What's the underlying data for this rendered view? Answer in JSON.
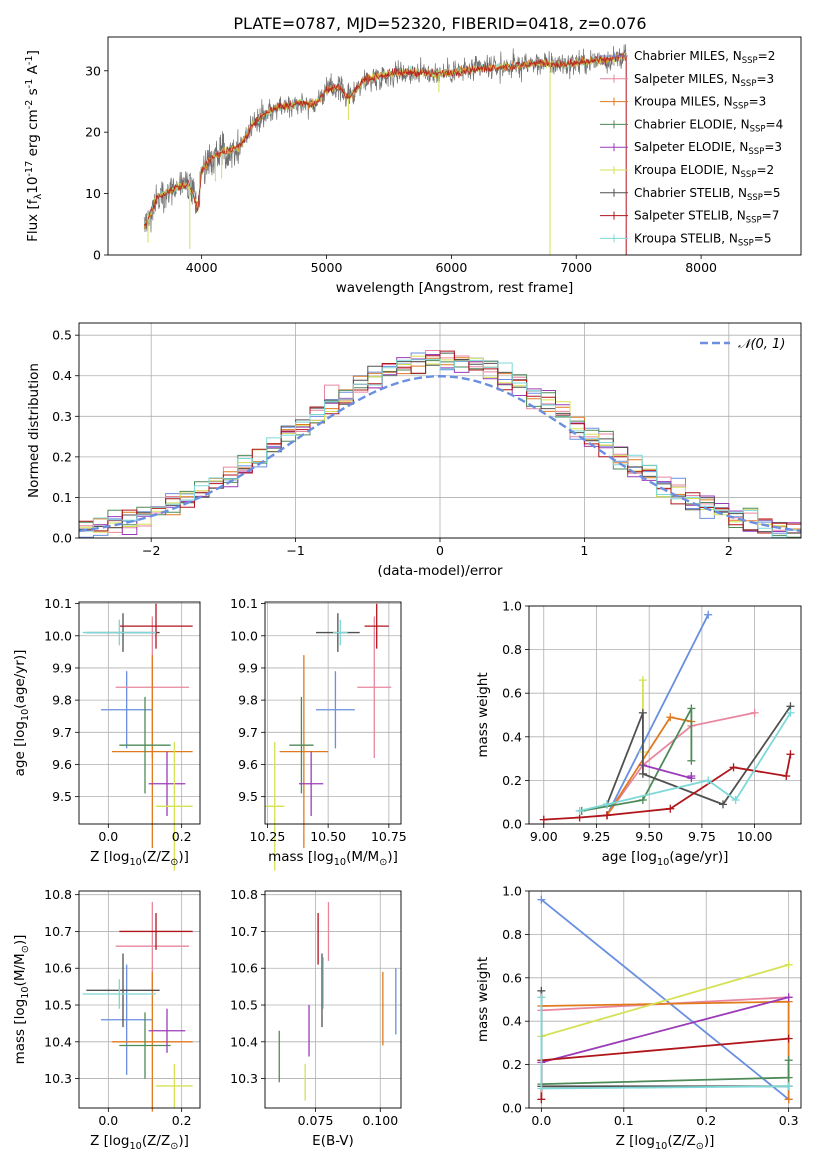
{
  "figure_title": "PLATE=0787, MJD=52320, FIBERID=0418, z=0.076",
  "colors": {
    "C_MILES": "#6a8fe0",
    "S_MILES": "#e8869f",
    "K_MILES": "#e07a1f",
    "C_ELODIE": "#4e8a58",
    "S_ELODIE": "#9b3bb8",
    "K_ELODIE": "#d5e155",
    "C_STELIB": "#505050",
    "S_STELIB": "#b0151b",
    "K_STELIB": "#7dd8d8",
    "data": "#707070",
    "gauss": "#6a8fe0"
  },
  "chart_data": [
    {
      "id": "spectrum",
      "type": "line",
      "xlabel": "wavelength [Angstrom, rest frame]",
      "ylabel": "Flux [f$_\\lambda$10$^{-17}$ erg cm$^{-2}$ s$^{-1}$ A$^{-1}$]",
      "xlim": [
        3250,
        8800
      ],
      "ylim": [
        0,
        35.5
      ],
      "xticks": [
        "4000",
        "5000",
        "6000",
        "7000",
        "8000"
      ],
      "yticks": [
        "0",
        "10",
        "20",
        "30"
      ],
      "legend_position": "top-right",
      "legend": [
        {
          "main": "Chabrier MILES, N",
          "sub": "SSP",
          "val": "=2",
          "color": "C_MILES"
        },
        {
          "main": "Salpeter MILES, N",
          "sub": "SSP",
          "val": "=3",
          "color": "S_MILES"
        },
        {
          "main": "Kroupa MILES, N",
          "sub": "SSP",
          "val": "=3",
          "color": "K_MILES"
        },
        {
          "main": "Chabrier ELODIE, N",
          "sub": "SSP",
          "val": "=4",
          "color": "C_ELODIE"
        },
        {
          "main": "Salpeter ELODIE, N",
          "sub": "SSP",
          "val": "=3",
          "color": "S_ELODIE"
        },
        {
          "main": "Kroupa ELODIE, N",
          "sub": "SSP",
          "val": "=2",
          "color": "K_ELODIE"
        },
        {
          "main": "Chabrier STELIB, N",
          "sub": "SSP",
          "val": "=5",
          "color": "C_STELIB"
        },
        {
          "main": "Salpeter STELIB, N",
          "sub": "SSP",
          "val": "=7",
          "color": "S_STELIB"
        },
        {
          "main": "Kroupa STELIB, N",
          "sub": "SSP",
          "val": "=5",
          "color": "K_STELIB"
        }
      ],
      "continuum": [
        [
          3540,
          4.5
        ],
        [
          3650,
          9.5
        ],
        [
          3800,
          11
        ],
        [
          3900,
          11.5
        ],
        [
          3970,
          7.5
        ],
        [
          4000,
          14
        ],
        [
          4100,
          16
        ],
        [
          4200,
          17
        ],
        [
          4300,
          17.5
        ],
        [
          4400,
          21
        ],
        [
          4500,
          23
        ],
        [
          4600,
          24
        ],
        [
          4800,
          24.8
        ],
        [
          4900,
          24.5
        ],
        [
          5000,
          26.8
        ],
        [
          5100,
          27.5
        ],
        [
          5175,
          25.5
        ],
        [
          5300,
          28.5
        ],
        [
          5500,
          29.5
        ],
        [
          5700,
          29.8
        ],
        [
          5900,
          29.5
        ],
        [
          6100,
          30
        ],
        [
          6300,
          30.5
        ],
        [
          6500,
          30.8
        ],
        [
          6700,
          31.3
        ],
        [
          6900,
          31
        ],
        [
          7100,
          31.5
        ],
        [
          7300,
          32
        ],
        [
          7400,
          32.5
        ]
      ],
      "spectrum_noise": 1.4,
      "lines": [
        {
          "x": 3570,
          "y": 2
        },
        {
          "x": 3905,
          "y": 1
        },
        {
          "x": 4110,
          "y": 12
        },
        {
          "x": 4160,
          "y": 12.5
        },
        {
          "x": 5175,
          "y": 22
        },
        {
          "x": 5900,
          "y": 26.5
        },
        {
          "x": 6790,
          "y": 0
        },
        {
          "x": 7400,
          "y": 0
        }
      ]
    },
    {
      "id": "residuals",
      "type": "histogram",
      "xlabel": "(data-model)/error",
      "ylabel": "Normed distribution",
      "xlim": [
        -2.5,
        2.5
      ],
      "ylim": [
        0,
        0.53
      ],
      "xticks": [
        "−2",
        "−1",
        "0",
        "1",
        "2"
      ],
      "yticks": [
        "0.0",
        "0.1",
        "0.2",
        "0.3",
        "0.4",
        "0.5"
      ],
      "bin_width": 0.1,
      "reference_label": "𝒩(0, 1)",
      "legend_position": "top-right"
    },
    {
      "id": "age_vs_Z",
      "type": "errorbar",
      "xlabel": "Z [log$_{10}$(Z/Z$_\\odot$)]",
      "ylabel": "age  [log$_{10}$(age/yr)]",
      "xlim": [
        -0.08,
        0.25
      ],
      "ylim": [
        9.415,
        10.105
      ],
      "xticks": [
        "0.0",
        "0.2"
      ],
      "yticks": [
        "9.5",
        "9.6",
        "9.7",
        "9.8",
        "9.9",
        "10.0",
        "10.1"
      ],
      "points": [
        {
          "c": "C_MILES",
          "x": 0.05,
          "xe": 0.07,
          "y": 9.77,
          "ye": 0.12
        },
        {
          "c": "S_MILES",
          "x": 0.12,
          "xe": 0.1,
          "y": 9.84,
          "ye": 0.22
        },
        {
          "c": "K_MILES",
          "x": 0.12,
          "xe": 0.11,
          "y": 9.64,
          "ye": 0.3
        },
        {
          "c": "C_ELODIE",
          "x": 0.1,
          "xe": 0.07,
          "y": 9.66,
          "ye": 0.15
        },
        {
          "c": "S_ELODIE",
          "x": 0.16,
          "xe": 0.05,
          "y": 9.54,
          "ye": 0.1
        },
        {
          "c": "K_ELODIE",
          "x": 0.18,
          "xe": 0.05,
          "y": 9.47,
          "ye": 0.2
        },
        {
          "c": "C_STELIB",
          "x": 0.04,
          "xe": 0.1,
          "y": 10.01,
          "ye": 0.06
        },
        {
          "c": "S_STELIB",
          "x": 0.13,
          "xe": 0.1,
          "y": 10.03,
          "ye": 0.07
        },
        {
          "c": "K_STELIB",
          "x": 0.03,
          "xe": 0.1,
          "y": 10.01,
          "ye": 0.04
        }
      ]
    },
    {
      "id": "age_vs_mass",
      "type": "errorbar",
      "xlabel": "mass [log$_{10}$(M/M$_\\odot$)]",
      "ylabel": "",
      "xlim": [
        10.24,
        10.8
      ],
      "ylim": [
        9.415,
        10.105
      ],
      "xticks": [
        "10.25",
        "10.50",
        "10.75"
      ],
      "yticks": [
        "9.5",
        "9.6",
        "9.7",
        "9.8",
        "9.9",
        "10.0",
        "10.1"
      ],
      "points": [
        {
          "c": "C_MILES",
          "x": 10.53,
          "xe": 0.08,
          "y": 9.77,
          "ye": 0.12
        },
        {
          "c": "S_MILES",
          "x": 10.69,
          "xe": 0.07,
          "y": 9.84,
          "ye": 0.22
        },
        {
          "c": "K_MILES",
          "x": 10.4,
          "xe": 0.1,
          "y": 9.64,
          "ye": 0.3
        },
        {
          "c": "C_ELODIE",
          "x": 10.39,
          "xe": 0.05,
          "y": 9.66,
          "ye": 0.15
        },
        {
          "c": "S_ELODIE",
          "x": 10.43,
          "xe": 0.05,
          "y": 9.54,
          "ye": 0.1
        },
        {
          "c": "K_ELODIE",
          "x": 10.28,
          "xe": 0.04,
          "y": 9.47,
          "ye": 0.2
        },
        {
          "c": "C_STELIB",
          "x": 10.54,
          "xe": 0.09,
          "y": 10.01,
          "ye": 0.06
        },
        {
          "c": "S_STELIB",
          "x": 10.7,
          "xe": 0.05,
          "y": 10.03,
          "ye": 0.07
        },
        {
          "c": "K_STELIB",
          "x": 10.55,
          "xe": 0.03,
          "y": 10.01,
          "ye": 0.04
        }
      ]
    },
    {
      "id": "weight_vs_age",
      "type": "line",
      "xlabel": "age  [log$_{10}$(age/yr)]",
      "ylabel": "mass weight",
      "xlim": [
        8.93,
        10.22
      ],
      "ylim": [
        0,
        1.0
      ],
      "xticks": [
        "9.00",
        "9.25",
        "9.50",
        "9.75",
        "10.00"
      ],
      "yticks": [
        "0.0",
        "0.2",
        "0.4",
        "0.6",
        "0.8",
        "1.0"
      ],
      "series": [
        {
          "c": "C_MILES",
          "points": [
            [
              9.3,
              0.04
            ],
            [
              9.78,
              0.96
            ]
          ]
        },
        {
          "c": "S_MILES",
          "points": [
            [
              9.3,
              0.04
            ],
            [
              9.47,
              0.27
            ],
            [
              9.7,
              0.45
            ],
            [
              10.0,
              0.51
            ]
          ]
        },
        {
          "c": "K_MILES",
          "points": [
            [
              9.3,
              0.04
            ],
            [
              9.6,
              0.49
            ],
            [
              9.7,
              0.47
            ]
          ]
        },
        {
          "c": "C_ELODIE",
          "points": [
            [
              9.18,
              0.06
            ],
            [
              9.47,
              0.11
            ],
            [
              9.7,
              0.53
            ],
            [
              9.7,
              0.29
            ]
          ]
        },
        {
          "c": "S_ELODIE",
          "points": [
            [
              9.47,
              0.27
            ],
            [
              9.7,
              0.21
            ],
            [
              9.7,
              0.22
            ]
          ]
        },
        {
          "c": "K_ELODIE",
          "points": [
            [
              9.47,
              0.33
            ],
            [
              9.47,
              0.66
            ]
          ]
        },
        {
          "c": "C_STELIB",
          "points": [
            [
              9.3,
              0.09
            ],
            [
              9.47,
              0.51
            ],
            [
              9.47,
              0.23
            ],
            [
              9.85,
              0.09
            ],
            [
              10.17,
              0.54
            ]
          ]
        },
        {
          "c": "S_STELIB",
          "points": [
            [
              9.0,
              0.02
            ],
            [
              9.17,
              0.03
            ],
            [
              9.3,
              0.04
            ],
            [
              9.6,
              0.07
            ],
            [
              9.9,
              0.26
            ],
            [
              10.15,
              0.22
            ],
            [
              10.17,
              0.32
            ]
          ]
        },
        {
          "c": "K_STELIB",
          "points": [
            [
              9.17,
              0.06
            ],
            [
              9.3,
              0.09
            ],
            [
              9.78,
              0.2
            ],
            [
              9.91,
              0.11
            ],
            [
              10.17,
              0.51
            ]
          ]
        }
      ]
    },
    {
      "id": "mass_vs_Z",
      "type": "errorbar",
      "xlabel": "Z [log$_{10}$(Z/Z$_\\odot$)]",
      "ylabel": "mass [log$_{10}$(M/M$_\\odot$)]",
      "xlim": [
        -0.08,
        0.25
      ],
      "ylim": [
        10.22,
        10.81
      ],
      "xticks": [
        "0.0",
        "0.2"
      ],
      "yticks": [
        "10.3",
        "10.4",
        "10.5",
        "10.6",
        "10.7",
        "10.8"
      ],
      "points": [
        {
          "c": "C_MILES",
          "x": 0.05,
          "xe": 0.07,
          "y": 10.46,
          "ye": 0.15
        },
        {
          "c": "S_MILES",
          "x": 0.12,
          "xe": 0.1,
          "y": 10.66,
          "ye": 0.12
        },
        {
          "c": "K_MILES",
          "x": 0.12,
          "xe": 0.11,
          "y": 10.4,
          "ye": 0.19
        },
        {
          "c": "C_ELODIE",
          "x": 0.1,
          "xe": 0.07,
          "y": 10.39,
          "ye": 0.09
        },
        {
          "c": "S_ELODIE",
          "x": 0.16,
          "xe": 0.05,
          "y": 10.43,
          "ye": 0.06
        },
        {
          "c": "K_ELODIE",
          "x": 0.18,
          "xe": 0.05,
          "y": 10.28,
          "ye": 0.06
        },
        {
          "c": "C_STELIB",
          "x": 0.04,
          "xe": 0.1,
          "y": 10.54,
          "ye": 0.1
        },
        {
          "c": "S_STELIB",
          "x": 0.13,
          "xe": 0.1,
          "y": 10.7,
          "ye": 0.05
        },
        {
          "c": "K_STELIB",
          "x": 0.03,
          "xe": 0.1,
          "y": 10.53,
          "ye": 0.04
        }
      ]
    },
    {
      "id": "mass_vs_ebv",
      "type": "errorbar",
      "xlabel": "E(B-V)",
      "ylabel": "",
      "xlim": [
        0.0555,
        0.108
      ],
      "ylim": [
        10.22,
        10.81
      ],
      "xticks": [
        "0.075",
        "0.100"
      ],
      "yticks": [
        "10.3",
        "10.4",
        "10.5",
        "10.6",
        "10.7",
        "10.8"
      ],
      "points": [
        {
          "c": "C_MILES",
          "x": 0.106,
          "xe": 0,
          "y": 10.51,
          "ye": 0.09
        },
        {
          "c": "S_MILES",
          "x": 0.08,
          "xe": 0,
          "y": 10.7,
          "ye": 0.08
        },
        {
          "c": "K_MILES",
          "x": 0.101,
          "xe": 0,
          "y": 10.49,
          "ye": 0.1
        },
        {
          "c": "C_ELODIE",
          "x": 0.061,
          "xe": 0,
          "y": 10.36,
          "ye": 0.07
        },
        {
          "c": "S_ELODIE",
          "x": 0.0725,
          "xe": 0,
          "y": 10.43,
          "ye": 0.07
        },
        {
          "c": "K_ELODIE",
          "x": 0.071,
          "xe": 0,
          "y": 10.29,
          "ye": 0.05
        },
        {
          "c": "C_STELIB",
          "x": 0.0775,
          "xe": 0,
          "y": 10.54,
          "ye": 0.1
        },
        {
          "c": "S_STELIB",
          "x": 0.076,
          "xe": 0,
          "y": 10.68,
          "ye": 0.07
        },
        {
          "c": "K_STELIB",
          "x": 0.078,
          "xe": 0,
          "y": 10.56,
          "ye": 0.07
        }
      ]
    },
    {
      "id": "weight_vs_Z",
      "type": "line",
      "xlabel": "Z [log$_{10}$(Z/Z$_\\odot$)]",
      "ylabel": "mass weight",
      "xlim": [
        -0.015,
        0.315
      ],
      "ylim": [
        0,
        1.0
      ],
      "xticks": [
        "0.0",
        "0.1",
        "0.2",
        "0.3"
      ],
      "yticks": [
        "0.0",
        "0.2",
        "0.4",
        "0.6",
        "0.8",
        "1.0"
      ],
      "series": [
        {
          "c": "C_MILES",
          "points": [
            [
              0.0,
              0.96
            ],
            [
              0.3,
              0.04
            ]
          ]
        },
        {
          "c": "S_MILES",
          "points": [
            [
              0.0,
              0.45
            ],
            [
              0.3,
              0.51
            ]
          ]
        },
        {
          "c": "K_MILES",
          "points": [
            [
              0.0,
              0.47
            ],
            [
              0.3,
              0.49
            ],
            [
              0.3,
              0.04
            ]
          ]
        },
        {
          "c": "C_ELODIE",
          "points": [
            [
              0.0,
              0.11
            ],
            [
              0.3,
              0.14
            ],
            [
              0.3,
              0.22
            ]
          ]
        },
        {
          "c": "S_ELODIE",
          "points": [
            [
              0.0,
              0.21
            ],
            [
              0.3,
              0.51
            ]
          ]
        },
        {
          "c": "K_ELODIE",
          "points": [
            [
              0.0,
              0.33
            ],
            [
              0.3,
              0.66
            ]
          ]
        },
        {
          "c": "C_STELIB",
          "points": [
            [
              0.0,
              0.54
            ],
            [
              0.0,
              0.1
            ],
            [
              0.3,
              0.1
            ]
          ]
        },
        {
          "c": "S_STELIB",
          "points": [
            [
              0.0,
              0.04
            ],
            [
              0.0,
              0.22
            ],
            [
              0.3,
              0.32
            ]
          ]
        },
        {
          "c": "K_STELIB",
          "points": [
            [
              0.0,
              0.51
            ],
            [
              0.0,
              0.09
            ],
            [
              0.3,
              0.1
            ]
          ]
        }
      ]
    }
  ]
}
